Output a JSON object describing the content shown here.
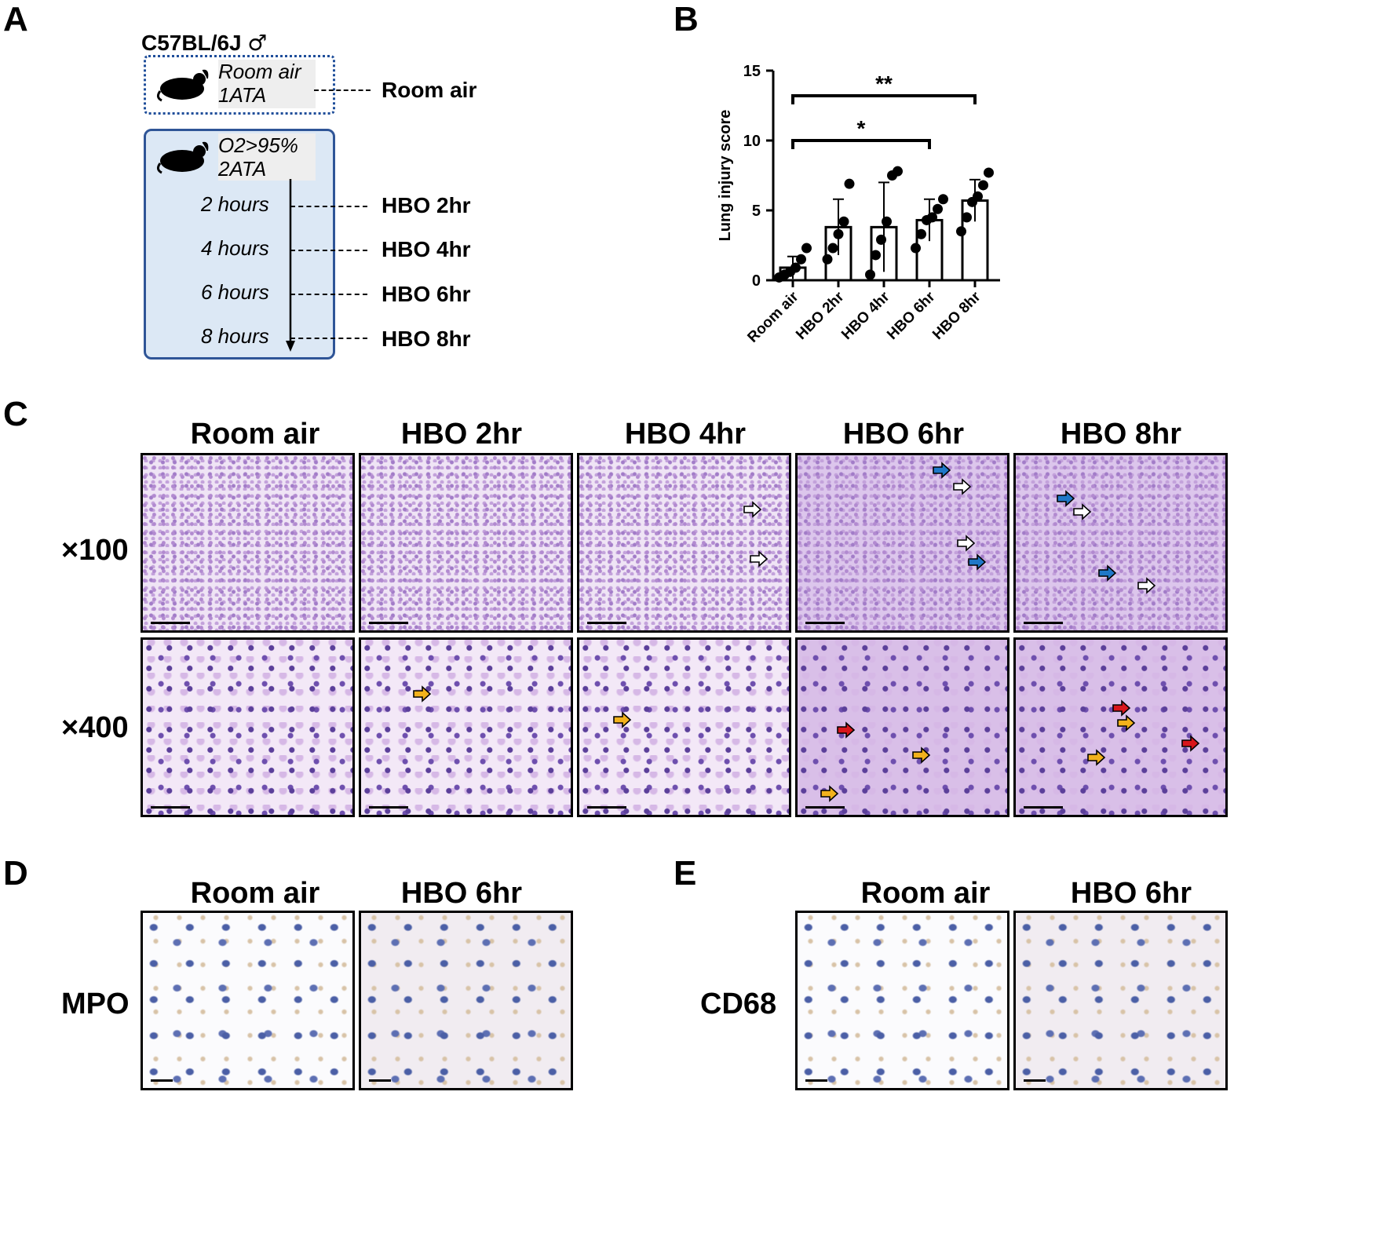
{
  "panels": {
    "a": {
      "letter": "A",
      "strain": "C57BL/6J",
      "sex_symbol": "♂",
      "room_condition": [
        "Room air",
        "1ATA"
      ],
      "room_label": "Room air",
      "hbo_condition": [
        "O2>95%",
        "2ATA"
      ],
      "timepoints": [
        {
          "time": "2 hours",
          "label": "HBO 2hr"
        },
        {
          "time": "4 hours",
          "label": "HBO 4hr"
        },
        {
          "time": "6 hours",
          "label": "HBO 6hr"
        },
        {
          "time": "8 hours",
          "label": "HBO 8hr"
        }
      ],
      "colors": {
        "dotted_border": "#1f4e9a",
        "solid_border": "#2f5597",
        "fill": "#dce8f5",
        "text_bg": "#eeeeee"
      }
    },
    "b": {
      "letter": "B"
    },
    "c": {
      "letter": "C",
      "columns": [
        "Room air",
        "HBO 2hr",
        "HBO 4hr",
        "HBO 6hr",
        "HBO 8hr"
      ],
      "rows": [
        "×100",
        "×400"
      ],
      "arrow_colors": {
        "white": "#ffffff",
        "blue": "#1f78c8",
        "yellow": "#f2b21c",
        "red": "#d8161b"
      }
    },
    "d": {
      "letter": "D",
      "columns": [
        "Room air",
        "HBO 6hr"
      ],
      "stain": "MPO"
    },
    "e": {
      "letter": "E",
      "columns": [
        "Room air",
        "HBO 6hr"
      ],
      "stain": "CD68"
    }
  },
  "chart_data": {
    "type": "bar",
    "ylabel": "Lung injury score",
    "ylim": [
      0,
      15
    ],
    "yticks": [
      0,
      5,
      10,
      15
    ],
    "categories": [
      "Room air",
      "HBO 2hr",
      "HBO 4hr",
      "HBO 6hr",
      "HBO 8hr"
    ],
    "values": [
      0.9,
      3.8,
      3.8,
      4.3,
      5.7
    ],
    "sd": [
      0.8,
      2.0,
      3.2,
      1.5,
      1.5
    ],
    "points": [
      [
        0.2,
        0.4,
        0.6,
        0.9,
        1.5,
        2.3
      ],
      [
        1.5,
        2.3,
        3.3,
        4.2,
        6.9
      ],
      [
        0.4,
        1.8,
        2.9,
        4.2,
        7.5,
        7.8
      ],
      [
        2.3,
        3.3,
        4.3,
        4.5,
        5.1,
        5.8
      ],
      [
        3.5,
        4.5,
        5.6,
        6.0,
        6.8,
        7.7
      ]
    ],
    "brackets": [
      {
        "from": 0,
        "to": 4,
        "label": "**",
        "y": 13.2
      },
      {
        "from": 0,
        "to": 3,
        "label": "*",
        "y": 10.0
      }
    ]
  }
}
